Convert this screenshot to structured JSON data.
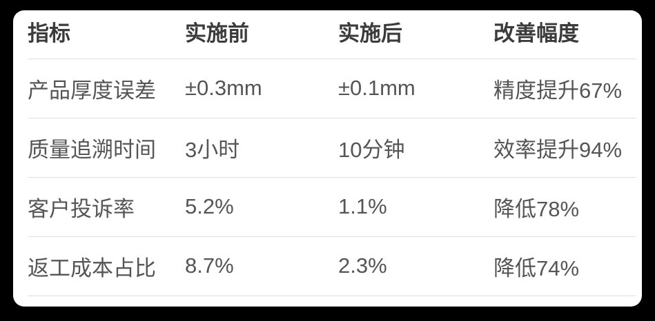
{
  "theme": {
    "page_background": "#000000",
    "card_background": "#ffffff",
    "header_text_color": "#3b3b3b",
    "body_text_color": "#555555",
    "divider_color": "#e0e0e0"
  },
  "chart_data": {
    "type": "table",
    "columns": [
      "指标",
      "实施前",
      "实施后",
      "改善幅度"
    ],
    "rows": [
      {
        "metric": "产品厚度误差",
        "before": "±0.3mm",
        "after": "±0.1mm",
        "improvement": "精度提升67%"
      },
      {
        "metric": "质量追溯时间",
        "before": "3小时",
        "after": "10分钟",
        "improvement": "效率提升94%"
      },
      {
        "metric": "客户投诉率",
        "before": "5.2%",
        "after": "1.1%",
        "improvement": "降低78%"
      },
      {
        "metric": "返工成本占比",
        "before": "8.7%",
        "after": "2.3%",
        "improvement": "降低74%"
      }
    ]
  }
}
